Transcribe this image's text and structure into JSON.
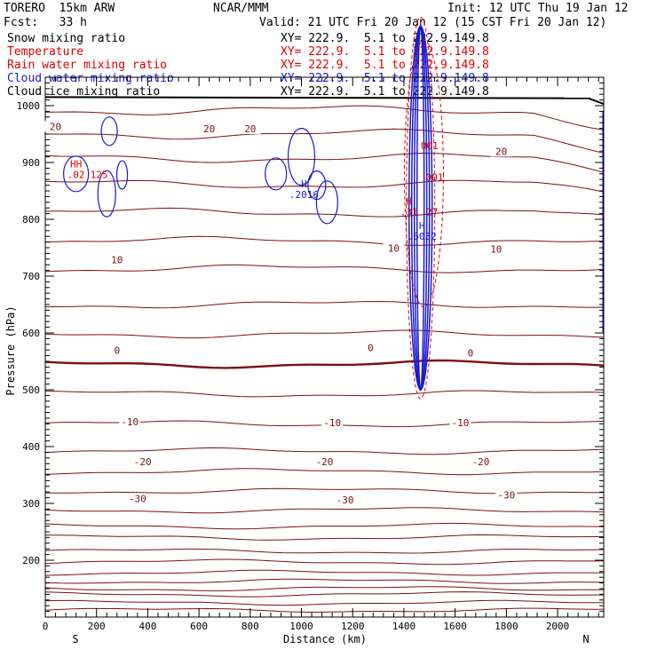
{
  "header": {
    "model": "TORERO  15km ARW",
    "center": "NCAR/MMM",
    "init": "Init: 12 UTC Thu 19 Jan 12",
    "fcst": "Fcst:   33 h",
    "valid": "Valid: 21 UTC Fri 20 Jan 12 (15 CST Fri 20 Jan 12)"
  },
  "fields": [
    {
      "name": "Snow mixing ratio",
      "xy": "XY= 222.9.  5.1 to 222.9.149.8",
      "color": "#000000"
    },
    {
      "name": "Temperature",
      "xy": "XY= 222.9.  5.1 to 222.9.149.8",
      "color": "#e00000"
    },
    {
      "name": "Rain water mixing ratio",
      "xy": "XY= 222.9.  5.1 to 222.9.149.8",
      "color": "#e00000"
    },
    {
      "name": "Cloud water mixing ratio",
      "xy": "XY= 222.9.  5.1 to 222.9.149.8",
      "color": "#1a1acc"
    },
    {
      "name": "Cloud ice mixing ratio",
      "xy": "XY= 222.9.  5.1 to 222.9.149.8",
      "color": "#000000"
    }
  ],
  "chart_data": {
    "type": "contour",
    "title": "",
    "xlabel": "Distance (km)",
    "ylabel": "Pressure (hPa)",
    "xlim": [
      0,
      2180
    ],
    "ylim": [
      1050,
      100
    ],
    "xticks": [
      0,
      200,
      400,
      600,
      800,
      1000,
      1200,
      1400,
      1600,
      1800,
      2000
    ],
    "yticks": [
      200,
      300,
      400,
      500,
      600,
      700,
      800,
      900,
      1000
    ],
    "endpoints": {
      "left": "S",
      "right": "N"
    },
    "temperature_isotherm_labels": [
      {
        "x": 360,
        "p": 307,
        "value": "-30"
      },
      {
        "x": 1170,
        "p": 305,
        "value": "-30"
      },
      {
        "x": 1800,
        "p": 313,
        "value": "-30"
      },
      {
        "x": 380,
        "p": 372,
        "value": "-20"
      },
      {
        "x": 1090,
        "p": 372,
        "value": "-20"
      },
      {
        "x": 1700,
        "p": 372,
        "value": "-20"
      },
      {
        "x": 330,
        "p": 442,
        "value": "-10"
      },
      {
        "x": 1120,
        "p": 441,
        "value": "-10"
      },
      {
        "x": 1620,
        "p": 441,
        "value": "-10"
      },
      {
        "x": 280,
        "p": 568,
        "value": "0"
      },
      {
        "x": 1270,
        "p": 573,
        "value": "0"
      },
      {
        "x": 1660,
        "p": 563,
        "value": "0"
      },
      {
        "x": 280,
        "p": 727,
        "value": "10"
      },
      {
        "x": 1360,
        "p": 748,
        "value": "10"
      },
      {
        "x": 1760,
        "p": 746,
        "value": "10"
      },
      {
        "x": 40,
        "p": 962,
        "value": "20"
      },
      {
        "x": 640,
        "p": 958,
        "value": "20"
      },
      {
        "x": 800,
        "p": 958,
        "value": "20"
      },
      {
        "x": 1780,
        "p": 918,
        "value": "20"
      }
    ],
    "extrema_labels": [
      {
        "x": 120,
        "p": 879,
        "marker": "HH",
        "value": ".02",
        "value2": "125",
        "color": "#e00000"
      },
      {
        "x": 1010,
        "p": 844,
        "marker": "H",
        "value": ".2016",
        "color": "#1a1acc"
      },
      {
        "x": 1420,
        "p": 813,
        "marker": "H",
        "value": ".31",
        "value2": "27",
        "color": "#e00000"
      },
      {
        "x": 1470,
        "p": 770,
        "marker": "H",
        "value": ".6032",
        "color": "#1a1acc"
      },
      {
        "x": 1520,
        "p": 874,
        "marker": "",
        "value": "001",
        "color": "#e00000"
      },
      {
        "x": 1500,
        "p": 930,
        "marker": "",
        "value": "001",
        "color": "#e00000"
      }
    ]
  }
}
